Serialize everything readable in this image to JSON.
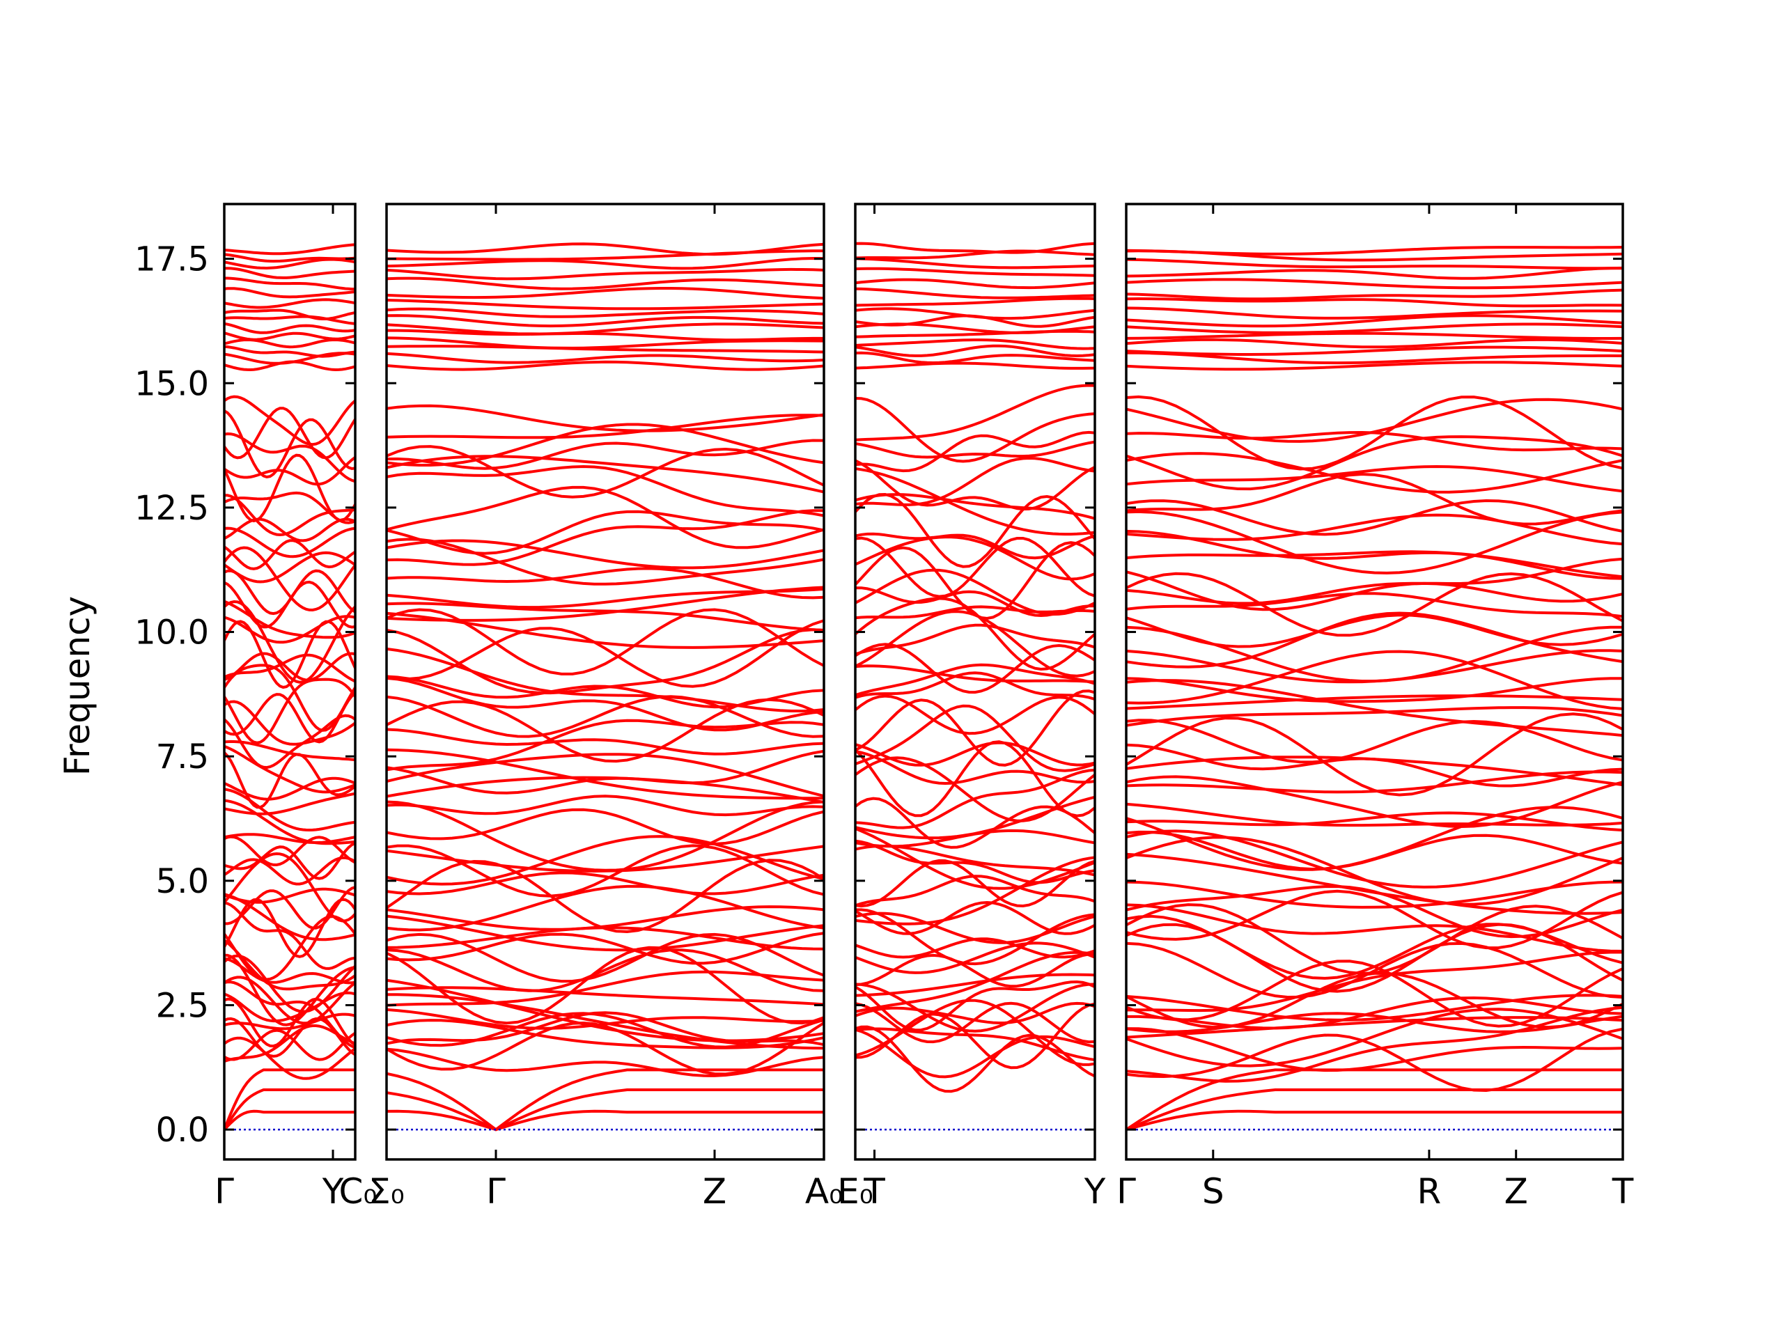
{
  "chart_data": {
    "type": "line",
    "ylabel": "Frequency",
    "ylim": [
      -0.6,
      18.6
    ],
    "y_ticks": [
      "0.0",
      "2.5",
      "5.0",
      "7.5",
      "10.0",
      "12.5",
      "15.0",
      "17.5"
    ],
    "line_color": "#ff0000",
    "zero_line_color": "#0000cc",
    "panels": [
      {
        "id": "p1",
        "ticks": [
          "Γ",
          "Y"
        ],
        "tick_x": [
          0,
          0.83
        ],
        "right_edge_label": "C₀"
      },
      {
        "id": "p2",
        "ticks": [
          "Σ₀",
          "Γ",
          "Z",
          "A₀"
        ],
        "tick_x": [
          0,
          0.25,
          0.75,
          1.0
        ]
      },
      {
        "id": "p3",
        "ticks": [
          "E₀",
          "T",
          "Y"
        ],
        "tick_x": [
          0,
          0.08,
          1.0
        ]
      },
      {
        "id": "p4",
        "ticks": [
          "Γ",
          "S",
          "R",
          "Z",
          "T"
        ],
        "tick_x": [
          0,
          0.175,
          0.61,
          0.785,
          1.0
        ]
      }
    ],
    "bands_optical": [
      1.4,
      1.55,
      1.7,
      1.85,
      2.0,
      2.15,
      2.3,
      2.45,
      2.6,
      2.75,
      2.9,
      3.2,
      3.45,
      3.65,
      3.85,
      4.05,
      4.25,
      4.45,
      4.7,
      4.95,
      5.2,
      5.4,
      5.6,
      5.85,
      6.1,
      6.35,
      6.6,
      6.85,
      7.05,
      7.3,
      7.55,
      7.8,
      8.05,
      8.3,
      8.55,
      8.8,
      9.05,
      9.3,
      9.55,
      9.8,
      10.05,
      10.3,
      10.55,
      10.8,
      11.05,
      11.3,
      11.55,
      11.8,
      12.05,
      12.3,
      12.6,
      12.9,
      13.2,
      13.5,
      13.75,
      14.0,
      14.25
    ],
    "bands_high": [
      15.35,
      15.5,
      15.65,
      15.8,
      15.95,
      16.1,
      16.25,
      16.4,
      16.6,
      16.8,
      17.0,
      17.2,
      17.4,
      17.55,
      17.7
    ],
    "bands_acoustic_gamma_max": [
      0.35,
      0.8,
      1.2
    ],
    "zero_line": 0.0
  }
}
